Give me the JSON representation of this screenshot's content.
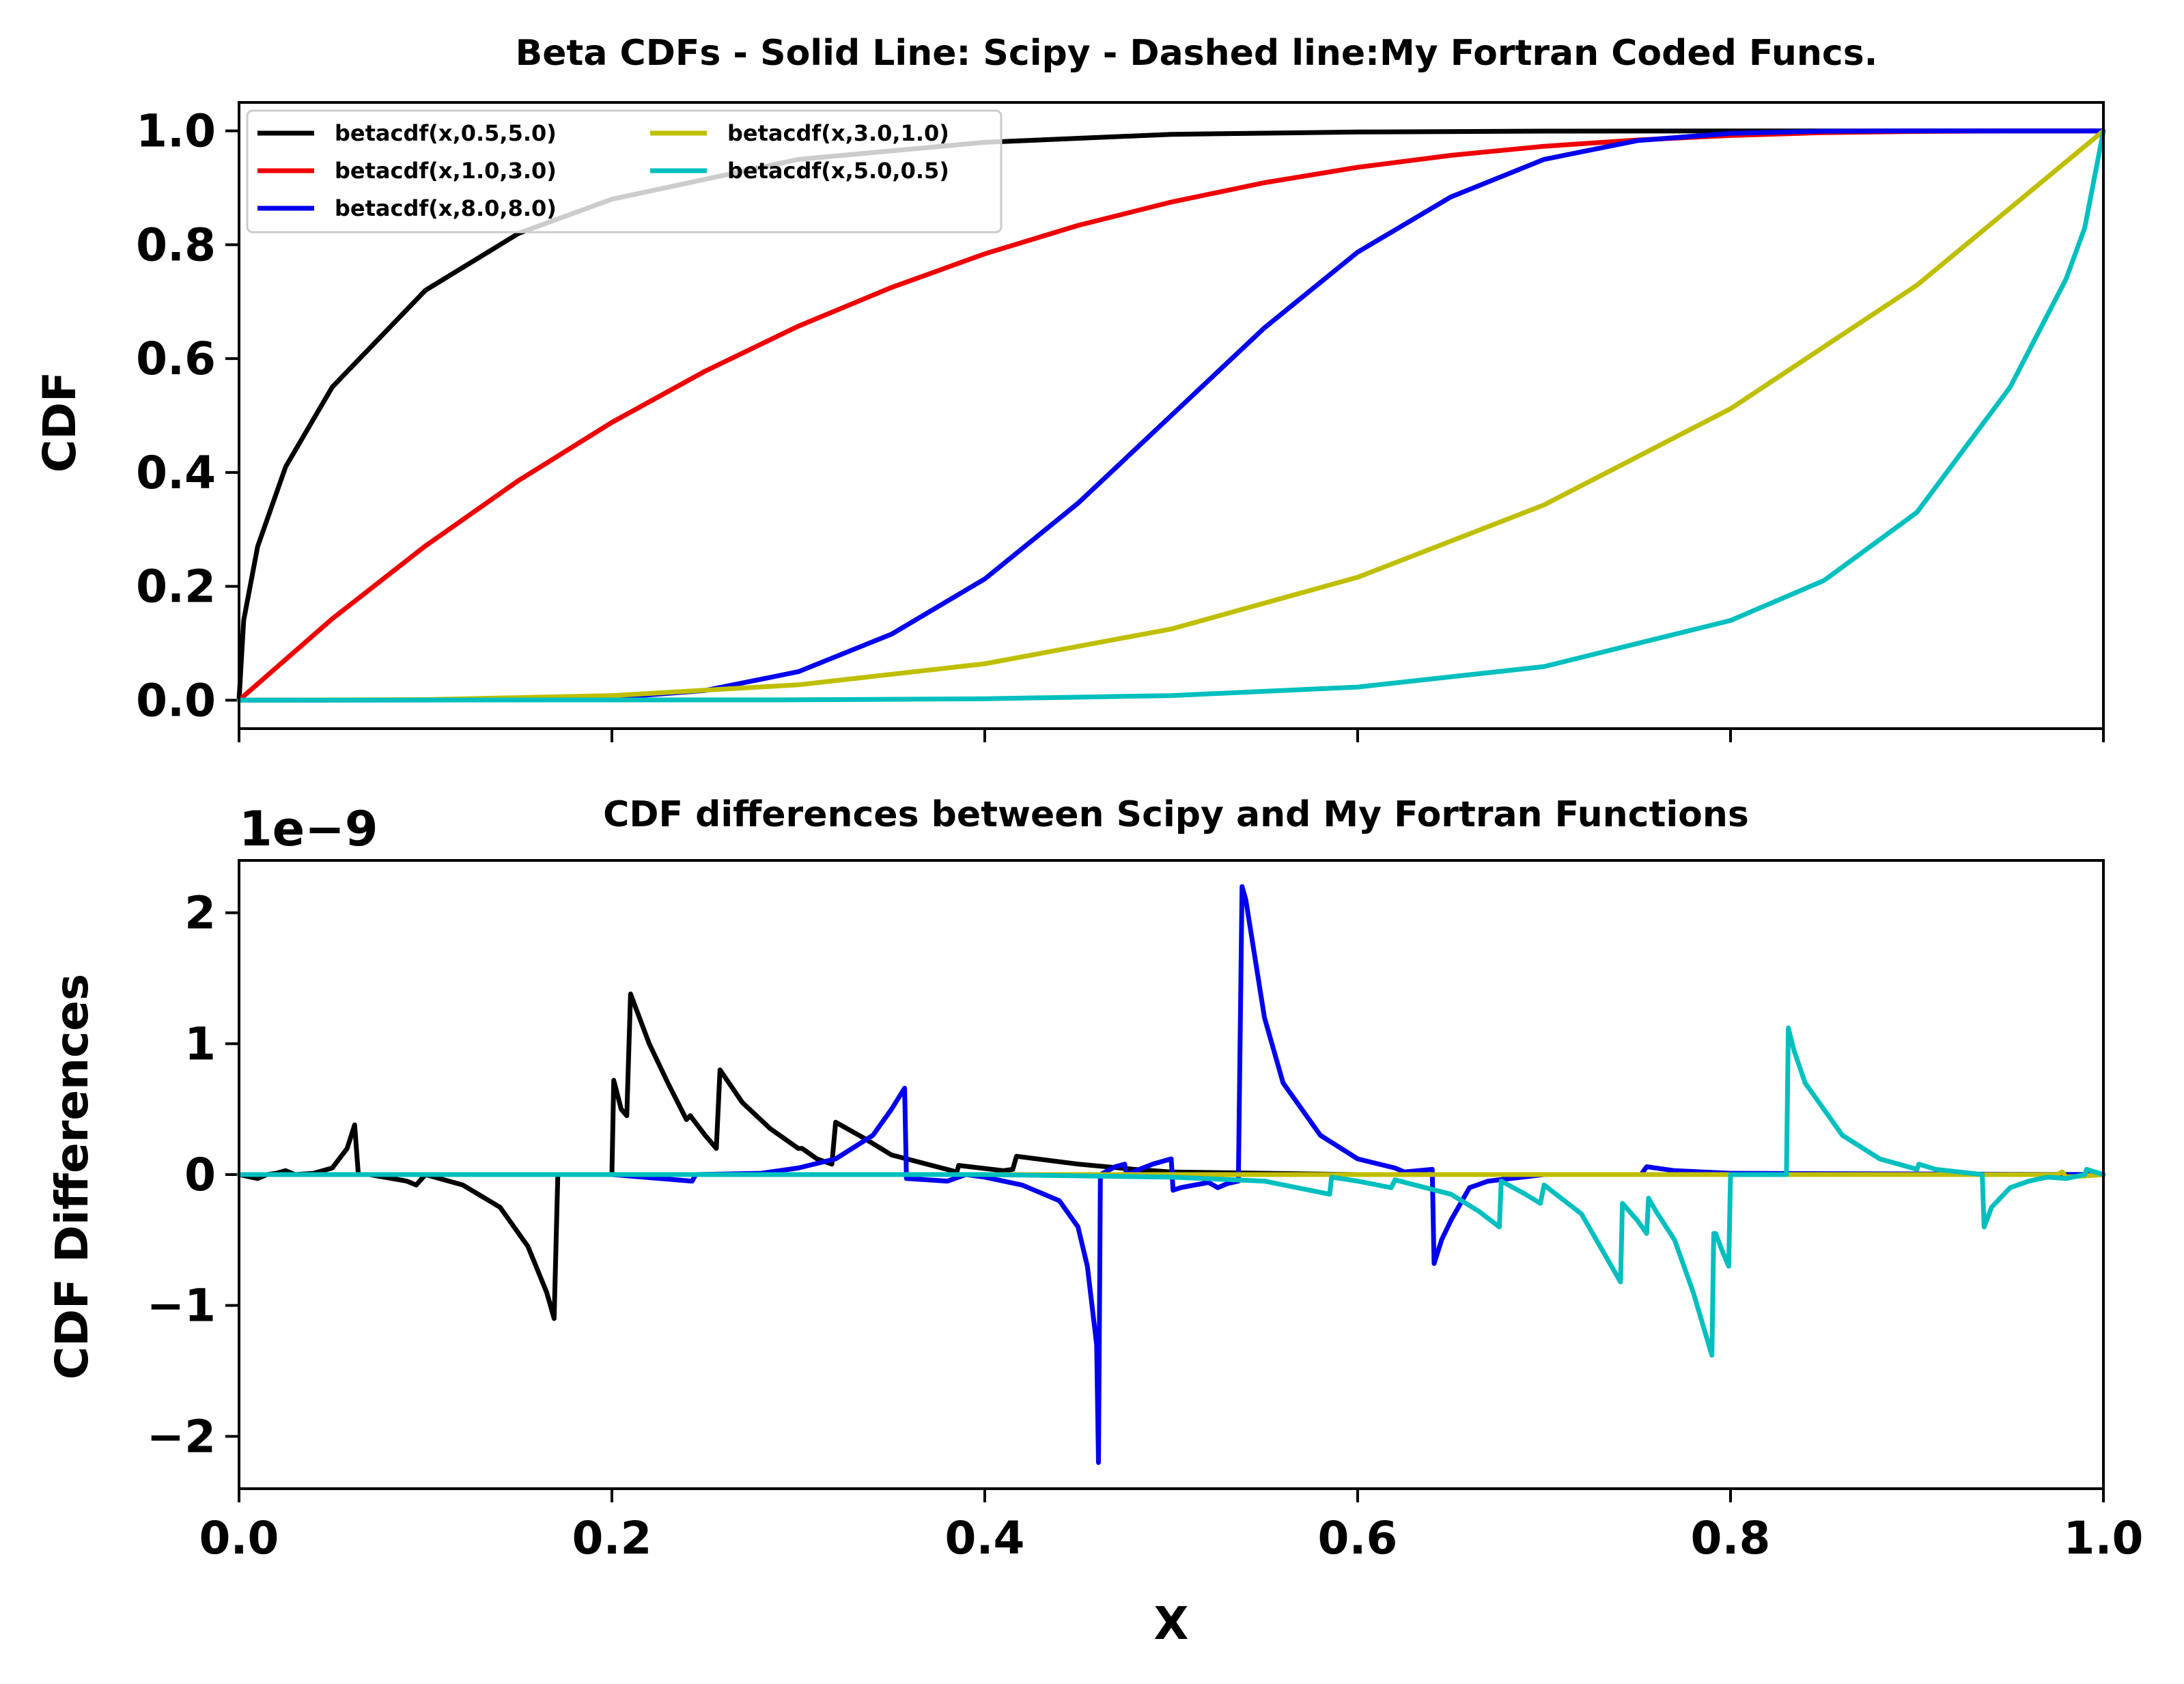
{
  "chart_data": [
    {
      "type": "line",
      "title": "Beta CDFs - Solid Line: Scipy - Dashed line:My Fortran Coded Funcs.",
      "xlabel": "",
      "ylabel": "CDF",
      "xlim": [
        0.0,
        1.0
      ],
      "ylim": [
        -0.05,
        1.05
      ],
      "xticks": [
        0.0,
        0.2,
        0.4,
        0.6,
        0.8,
        1.0
      ],
      "yticks": [
        "0.0",
        "0.2",
        "0.4",
        "0.6",
        "0.8",
        "1.0"
      ],
      "grid": false,
      "legend_position": "top-left",
      "series": [
        {
          "name": "betacdf(x,0.5,5.0)",
          "color": "#000000",
          "x": [
            0,
            0.0025,
            0.01,
            0.025,
            0.05,
            0.1,
            0.15,
            0.2,
            0.3,
            0.4,
            0.5,
            0.6,
            0.7,
            0.8,
            1.0
          ],
          "y": [
            0,
            0.14,
            0.27,
            0.41,
            0.55,
            0.72,
            0.82,
            0.88,
            0.95,
            0.98,
            0.994,
            0.998,
            0.9996,
            0.99998,
            1.0
          ]
        },
        {
          "name": "betacdf(x,1.0,3.0)",
          "color": "#ee0000",
          "x": [
            0,
            0.05,
            0.1,
            0.15,
            0.2,
            0.25,
            0.3,
            0.35,
            0.4,
            0.45,
            0.5,
            0.55,
            0.6,
            0.65,
            0.7,
            0.75,
            0.8,
            0.85,
            0.9,
            0.95,
            1.0
          ],
          "y": [
            0,
            0.143,
            0.271,
            0.386,
            0.488,
            0.578,
            0.657,
            0.725,
            0.784,
            0.834,
            0.875,
            0.909,
            0.936,
            0.957,
            0.973,
            0.984,
            0.992,
            0.997,
            0.999,
            1.0,
            1.0
          ]
        },
        {
          "name": "betacdf(x,8.0,8.0)",
          "color": "#0000ee",
          "x": [
            0,
            0.15,
            0.2,
            0.25,
            0.3,
            0.35,
            0.4,
            0.45,
            0.5,
            0.55,
            0.6,
            0.65,
            0.7,
            0.75,
            0.8,
            0.85,
            0.9,
            1.0
          ],
          "y": [
            0,
            0.0005,
            0.0042,
            0.017,
            0.05,
            0.116,
            0.213,
            0.346,
            0.5,
            0.654,
            0.787,
            0.884,
            0.95,
            0.983,
            0.9958,
            0.9995,
            0.99998,
            1.0
          ]
        },
        {
          "name": "betacdf(x,3.0,1.0)",
          "color": "#bfbf00",
          "x": [
            0,
            0.1,
            0.2,
            0.3,
            0.4,
            0.5,
            0.6,
            0.7,
            0.8,
            0.9,
            1.0
          ],
          "y": [
            0,
            0.001,
            0.008,
            0.027,
            0.064,
            0.125,
            0.216,
            0.343,
            0.512,
            0.729,
            1.0
          ]
        },
        {
          "name": "betacdf(x,5.0,0.5)",
          "color": "#00bfbf",
          "x": [
            0,
            0.3,
            0.4,
            0.5,
            0.6,
            0.7,
            0.8,
            0.85,
            0.9,
            0.95,
            0.98,
            0.99,
            1.0
          ],
          "y": [
            0,
            0.0006,
            0.0025,
            0.0081,
            0.023,
            0.059,
            0.14,
            0.21,
            0.33,
            0.55,
            0.74,
            0.83,
            1.0
          ]
        }
      ]
    },
    {
      "type": "line",
      "title": "CDF differences between Scipy and My Fortran Functions",
      "offset_label": "1e−9",
      "xlabel": "X",
      "ylabel": "CDF Differences",
      "xlim": [
        0.0,
        1.0
      ],
      "ylim": [
        -2.4,
        2.4
      ],
      "xticks": [
        "0.0",
        "0.2",
        "0.4",
        "0.6",
        "0.8",
        "1.0"
      ],
      "yticks": [
        {
          "v": -2,
          "label": "−2"
        },
        {
          "v": -1,
          "label": "−1"
        },
        {
          "v": 0,
          "label": "0"
        },
        {
          "v": 1,
          "label": "1"
        },
        {
          "v": 2,
          "label": "2"
        }
      ],
      "grid": false,
      "series": [
        {
          "name": "betacdf(x,0.5,5.0)",
          "color": "#000000",
          "x": [
            0,
            0.01,
            0.015,
            0.02,
            0.025,
            0.03,
            0.04,
            0.05,
            0.058,
            0.062,
            0.064,
            0.07,
            0.09,
            0.095,
            0.1,
            0.12,
            0.14,
            0.155,
            0.165,
            0.169,
            0.171,
            0.2,
            0.201,
            0.205,
            0.208,
            0.21,
            0.22,
            0.23,
            0.24,
            0.242,
            0.25,
            0.256,
            0.258,
            0.27,
            0.285,
            0.3,
            0.302,
            0.31,
            0.318,
            0.32,
            0.335,
            0.35,
            0.385,
            0.386,
            0.41,
            0.415,
            0.417,
            0.45,
            0.48,
            0.5,
            0.55,
            0.6,
            1.0
          ],
          "y": [
            0,
            -0.03,
            0.0,
            0.01,
            0.03,
            0.0,
            0.01,
            0.05,
            0.2,
            0.38,
            0.0,
            0.0,
            -0.05,
            -0.08,
            0.0,
            -0.08,
            -0.25,
            -0.55,
            -0.9,
            -1.1,
            0.0,
            0.0,
            0.72,
            0.5,
            0.45,
            1.38,
            1.0,
            0.7,
            0.42,
            0.45,
            0.3,
            0.2,
            0.8,
            0.55,
            0.35,
            0.2,
            0.2,
            0.12,
            0.08,
            0.4,
            0.28,
            0.15,
            0.02,
            0.07,
            0.03,
            0.04,
            0.14,
            0.08,
            0.04,
            0.02,
            0.01,
            0.0,
            0.0
          ]
        },
        {
          "name": "betacdf(x,1.0,3.0)",
          "color": "#ee0000",
          "x": [
            0,
            1.0
          ],
          "y": [
            0,
            0
          ]
        },
        {
          "name": "betacdf(x,8.0,8.0)",
          "color": "#0000ee",
          "x": [
            0,
            0.2,
            0.243,
            0.245,
            0.28,
            0.3,
            0.32,
            0.34,
            0.35,
            0.357,
            0.358,
            0.38,
            0.39,
            0.4,
            0.42,
            0.44,
            0.45,
            0.455,
            0.46,
            0.461,
            0.462,
            0.46205,
            0.47,
            0.475,
            0.476,
            0.49,
            0.5,
            0.501,
            0.505,
            0.52,
            0.525,
            0.53,
            0.536,
            0.538,
            0.54,
            0.55,
            0.56,
            0.58,
            0.6,
            0.62,
            0.625,
            0.64,
            0.641,
            0.645,
            0.65,
            0.66,
            0.67,
            0.7,
            0.752,
            0.755,
            0.77,
            0.8,
            1.0
          ],
          "y": [
            0,
            0,
            -0.05,
            0.0,
            0.01,
            0.05,
            0.12,
            0.3,
            0.5,
            0.66,
            -0.03,
            -0.05,
            0.0,
            -0.02,
            -0.08,
            -0.2,
            -0.4,
            -0.7,
            -1.3,
            -2.2,
            0.0,
            0.0,
            0.06,
            0.08,
            0.0,
            0.08,
            0.12,
            -0.12,
            -0.1,
            -0.06,
            -0.1,
            -0.07,
            -0.05,
            2.2,
            2.1,
            1.2,
            0.7,
            0.3,
            0.12,
            0.05,
            0.02,
            0.04,
            -0.68,
            -0.5,
            -0.35,
            -0.1,
            -0.05,
            0.0,
            0.0,
            0.06,
            0.03,
            0.01,
            0.0
          ]
        },
        {
          "name": "betacdf(x,3.0,1.0)",
          "color": "#bfbf00",
          "x": [
            0,
            0.975,
            0.978,
            0.98,
            1.0
          ],
          "y": [
            0,
            0,
            0.02,
            -0.02,
            0
          ]
        },
        {
          "name": "betacdf(x,5.0,0.5)",
          "color": "#00bfbf",
          "x": [
            0,
            0.4,
            0.5,
            0.55,
            0.585,
            0.586,
            0.6,
            0.618,
            0.62,
            0.65,
            0.665,
            0.676,
            0.677,
            0.69,
            0.698,
            0.7,
            0.72,
            0.741,
            0.742,
            0.75,
            0.755,
            0.756,
            0.76,
            0.77,
            0.78,
            0.79,
            0.791,
            0.792,
            0.796,
            0.799,
            0.8,
            0.83,
            0.831,
            0.834,
            0.84,
            0.86,
            0.88,
            0.9,
            0.901,
            0.91,
            0.935,
            0.936,
            0.94,
            0.95,
            0.96,
            0.97,
            0.98,
            0.99,
            0.991,
            1.0
          ],
          "y": [
            0,
            0,
            -0.02,
            -0.05,
            -0.15,
            -0.02,
            -0.05,
            -0.1,
            -0.04,
            -0.15,
            -0.28,
            -0.4,
            -0.05,
            -0.15,
            -0.22,
            -0.08,
            -0.3,
            -0.82,
            -0.22,
            -0.35,
            -0.45,
            -0.18,
            -0.28,
            -0.5,
            -0.9,
            -1.38,
            -0.45,
            -0.45,
            -0.6,
            -0.7,
            0.0,
            0.0,
            1.12,
            0.95,
            0.7,
            0.3,
            0.12,
            0.04,
            0.08,
            0.04,
            0.0,
            -0.4,
            -0.25,
            -0.1,
            -0.05,
            -0.02,
            -0.03,
            0.0,
            0.04,
            0.0
          ]
        }
      ]
    }
  ]
}
